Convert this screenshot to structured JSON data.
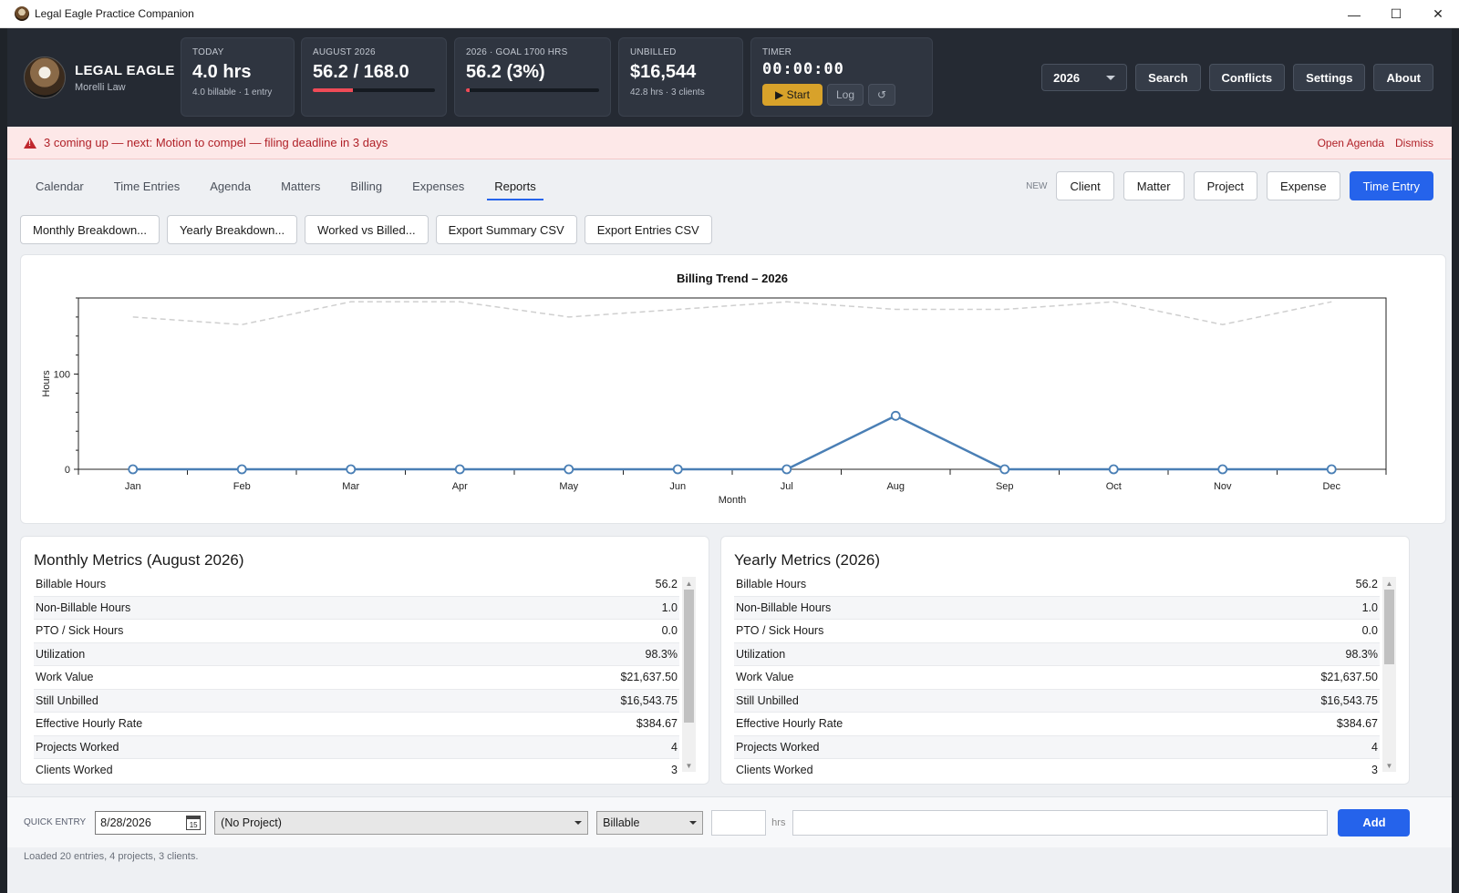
{
  "window": {
    "title": "Legal Eagle Practice Companion",
    "minimize": "—",
    "maximize": "☐",
    "close": "✕"
  },
  "brand": {
    "name": "LEGAL EAGLE",
    "firm": "Morelli Law"
  },
  "cards": {
    "today": {
      "label": "TODAY",
      "value": "4.0 hrs",
      "detail": "4.0 billable · 1 entry"
    },
    "month": {
      "label": "AUGUST 2026",
      "value": "56.2 / 168.0",
      "progress": 0.33
    },
    "year": {
      "label": "2026 · GOAL 1700 HRS",
      "value": "56.2 (3%)",
      "progress": 0.03
    },
    "unbilled": {
      "label": "UNBILLED",
      "value": "$16,544",
      "detail": "42.8 hrs · 3 clients"
    },
    "timer": {
      "label": "TIMER",
      "value": "00:00:00",
      "start": "▶ Start",
      "log": "Log",
      "reset": "↺"
    }
  },
  "header_controls": {
    "year": "2026",
    "search": "Search",
    "conflicts": "Conflicts",
    "settings": "Settings",
    "about": "About"
  },
  "alert": {
    "message": "3 coming up — next: Motion to compel — filing deadline in 3 days",
    "open_agenda": "Open Agenda",
    "dismiss": "Dismiss"
  },
  "tabs": [
    "Calendar",
    "Time Entries",
    "Agenda",
    "Matters",
    "Billing",
    "Expenses",
    "Reports"
  ],
  "active_tab": "Reports",
  "new_bar": {
    "label": "NEW",
    "client": "Client",
    "matter": "Matter",
    "project": "Project",
    "expense": "Expense",
    "time_entry": "Time Entry"
  },
  "report_buttons": [
    "Monthly Breakdown...",
    "Yearly Breakdown...",
    "Worked vs Billed...",
    "Export Summary CSV",
    "Export Entries CSV"
  ],
  "chart_data": {
    "type": "line",
    "title": "Billing Trend – 2026",
    "xlabel": "Month",
    "ylabel": "Hours",
    "categories": [
      "Jan",
      "Feb",
      "Mar",
      "Apr",
      "May",
      "Jun",
      "Jul",
      "Aug",
      "Sep",
      "Oct",
      "Nov",
      "Dec"
    ],
    "yticks": [
      0,
      100
    ],
    "ylim": [
      0,
      180
    ],
    "series": [
      {
        "values": [
          0,
          0,
          0,
          0,
          0,
          0,
          0,
          56.2,
          0,
          0,
          0,
          0
        ],
        "color": "#4a7fb5",
        "style": "solid-markers"
      },
      {
        "values": [
          160,
          152,
          176,
          176,
          160,
          168,
          176,
          168,
          168,
          176,
          152,
          176
        ],
        "color": "#cfcfcf",
        "style": "dashed"
      }
    ],
    "grid": false
  },
  "monthly": {
    "title": "Monthly Metrics (August 2026)",
    "rows": [
      [
        "Billable Hours",
        "56.2"
      ],
      [
        "Non-Billable Hours",
        "1.0"
      ],
      [
        "PTO / Sick Hours",
        "0.0"
      ],
      [
        "Utilization",
        "98.3%"
      ],
      [
        "Work Value",
        "$21,637.50"
      ],
      [
        "Still Unbilled",
        "$16,543.75"
      ],
      [
        "Effective Hourly Rate",
        "$384.67"
      ],
      [
        "Projects Worked",
        "4"
      ],
      [
        "Clients Worked",
        "3"
      ]
    ]
  },
  "yearly": {
    "title": "Yearly Metrics (2026)",
    "rows": [
      [
        "Billable Hours",
        "56.2"
      ],
      [
        "Non-Billable Hours",
        "1.0"
      ],
      [
        "PTO / Sick Hours",
        "0.0"
      ],
      [
        "Utilization",
        "98.3%"
      ],
      [
        "Work Value",
        "$21,637.50"
      ],
      [
        "Still Unbilled",
        "$16,543.75"
      ],
      [
        "Effective Hourly Rate",
        "$384.67"
      ],
      [
        "Projects Worked",
        "4"
      ],
      [
        "Clients Worked",
        "3"
      ]
    ]
  },
  "quick_entry": {
    "label": "QUICK ENTRY",
    "date": "8/28/2026",
    "calendar_day": "15",
    "project": "(No Project)",
    "type": "Billable",
    "hours": "",
    "hrs_label": "hrs",
    "description": "",
    "add": "Add"
  },
  "status": "Loaded 20 entries, 4 projects, 3 clients.",
  "scroll_up": "▲",
  "scroll_down": "▼"
}
